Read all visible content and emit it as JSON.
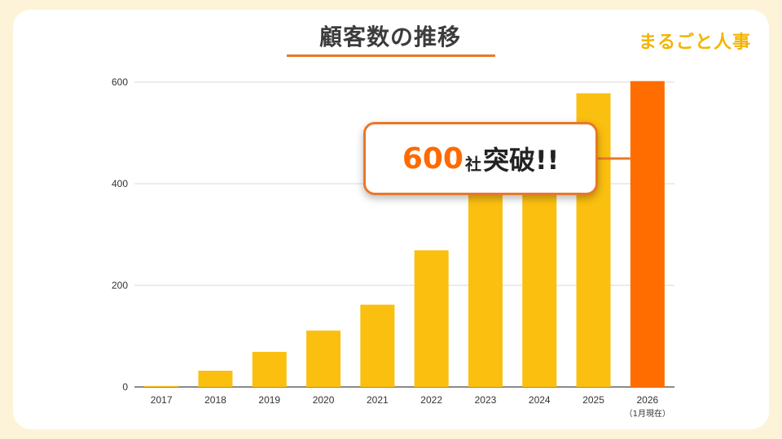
{
  "header": {
    "title": "顧客数の推移",
    "brand": "まるごと人事"
  },
  "callout": {
    "number": "600",
    "unit": "社",
    "message": "突破!!"
  },
  "colors": {
    "bar": "#fbbf0f",
    "highlight_bar": "#ff6d00",
    "accent": "#e8782a",
    "background": "#fdf3d8"
  },
  "chart_data": {
    "type": "bar",
    "categories": [
      "2017",
      "2018",
      "2019",
      "2020",
      "2021",
      "2022",
      "2023",
      "2024",
      "2025",
      "2026"
    ],
    "category_notes": [
      "",
      "",
      "",
      "",
      "",
      "",
      "",
      "",
      "",
      "（1月現在）"
    ],
    "values": [
      2,
      32,
      69,
      111,
      162,
      269,
      400,
      400,
      578,
      602
    ],
    "highlight_index": 9,
    "ylim": [
      0,
      600
    ],
    "yticks": [
      0,
      200,
      400,
      600
    ],
    "grid": true,
    "xlabel": "",
    "ylabel": ""
  }
}
